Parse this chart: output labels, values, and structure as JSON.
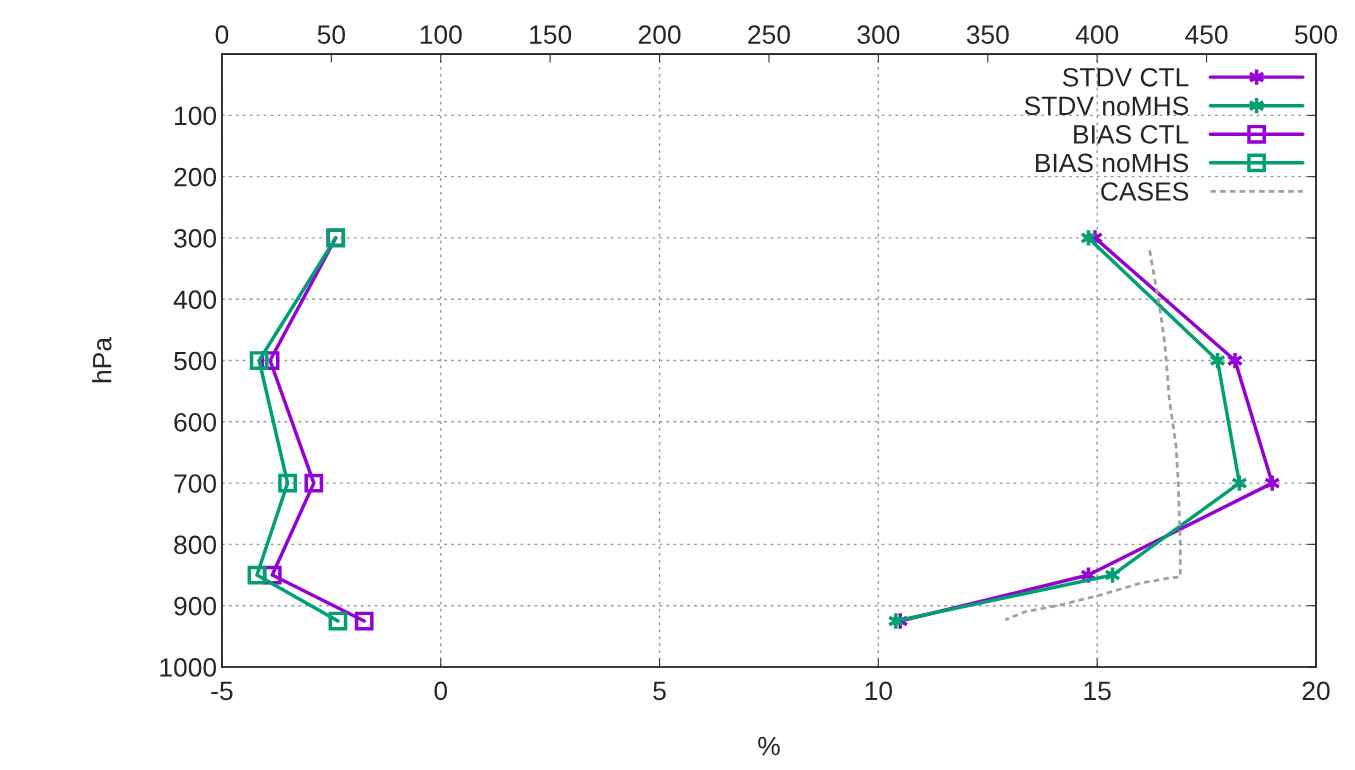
{
  "chart_data": {
    "type": "line",
    "xlabel": "%",
    "ylabel": "hPa",
    "xlim": [
      -5,
      20
    ],
    "xticks": [
      -5,
      0,
      5,
      10,
      15,
      20
    ],
    "x2lim": [
      0,
      500
    ],
    "x2ticks": [
      0,
      50,
      100,
      150,
      200,
      250,
      300,
      350,
      400,
      450,
      500
    ],
    "ylim": [
      1000,
      0
    ],
    "yticks": [
      100,
      200,
      300,
      400,
      500,
      600,
      700,
      800,
      900,
      1000
    ],
    "grid": true,
    "legend": "top right",
    "series": [
      {
        "name": "STDV CTL",
        "color": "#9400d3",
        "marker": "cross",
        "x": [
          14.95,
          18.15,
          19.0,
          14.8,
          10.5
        ],
        "values": [
          300,
          500,
          700,
          850,
          925
        ]
      },
      {
        "name": "STDV noMHS",
        "color": "#009e73",
        "marker": "cross",
        "x": [
          14.8,
          17.75,
          18.25,
          15.35,
          10.4
        ],
        "values": [
          300,
          500,
          700,
          850,
          925
        ]
      },
      {
        "name": "BIAS CTL",
        "color": "#9400d3",
        "marker": "square",
        "x": [
          -2.4,
          -3.9,
          -2.9,
          -3.85,
          -1.75
        ],
        "values": [
          300,
          500,
          700,
          850,
          925
        ]
      },
      {
        "name": "BIAS noMHS",
        "color": "#009e73",
        "marker": "square",
        "x": [
          -2.4,
          -4.15,
          -3.5,
          -4.2,
          -2.35
        ],
        "values": [
          300,
          500,
          700,
          850,
          925
        ]
      },
      {
        "name": "CASES",
        "color": "#a0a0a0",
        "marker": "none",
        "line_style": "dashed",
        "axis": "x2",
        "x": [
          424,
          429,
          431,
          433,
          436,
          437,
          438,
          438,
          433,
          420,
          401,
          383,
          367,
          358
        ],
        "values": [
          320,
          423,
          475,
          564,
          638,
          695,
          801,
          853,
          855,
          863,
          883,
          899,
          910,
          923
        ]
      }
    ]
  }
}
